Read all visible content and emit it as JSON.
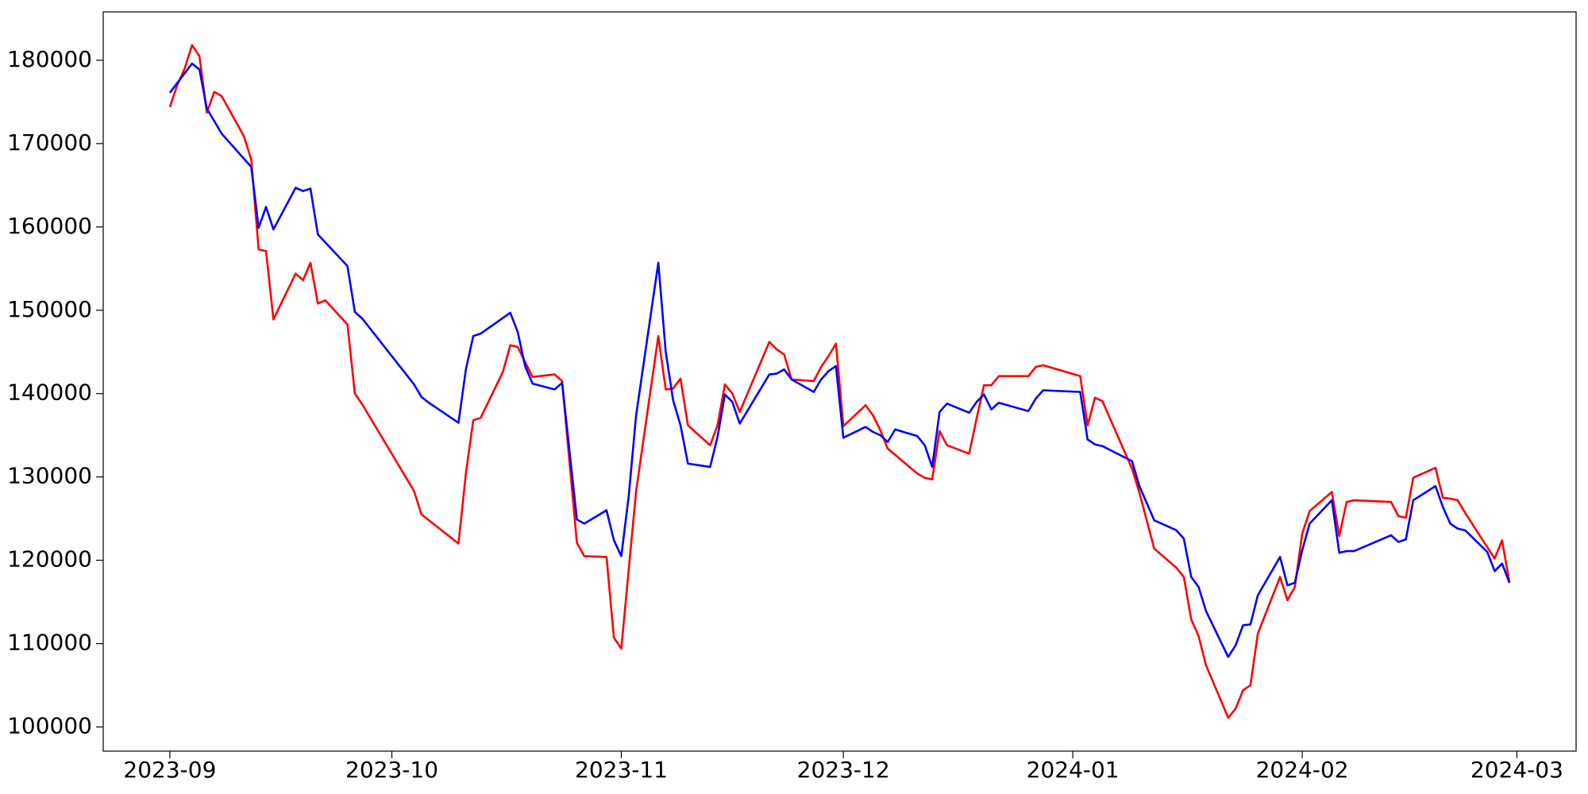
{
  "chart_data": {
    "type": "line",
    "xlim": [
      -9,
      190
    ],
    "xticks": [
      {
        "value": 0,
        "label": "2023-09"
      },
      {
        "value": 30,
        "label": "2023-10"
      },
      {
        "value": 61,
        "label": "2023-11"
      },
      {
        "value": 91,
        "label": "2023-12"
      },
      {
        "value": 122,
        "label": "2024-01"
      },
      {
        "value": 153,
        "label": "2024-02"
      },
      {
        "value": 182,
        "label": "2024-03"
      }
    ],
    "ylim": [
      97100,
      185800
    ],
    "yticks": [
      100000,
      110000,
      120000,
      130000,
      140000,
      150000,
      160000,
      170000,
      180000
    ],
    "grid": false,
    "series": [
      {
        "color": "#ff0000",
        "x": [
          0,
          1,
          2,
          3,
          4,
          5,
          6,
          7,
          10,
          11,
          12,
          13,
          14,
          17,
          18,
          19,
          20,
          21,
          24,
          25,
          26,
          33,
          34,
          39,
          40,
          41,
          42,
          45,
          46,
          47,
          49,
          52,
          53,
          55,
          56,
          59,
          60,
          61,
          63,
          66,
          67,
          68,
          69,
          70,
          73,
          74,
          75,
          76,
          77,
          81,
          82,
          83,
          84,
          87,
          88,
          89,
          90,
          91,
          94,
          95,
          96,
          97,
          101,
          102,
          103,
          104,
          105,
          108,
          109,
          110,
          111,
          112,
          116,
          117,
          118,
          123,
          124,
          125,
          126,
          130,
          131,
          133,
          136,
          137,
          138,
          139,
          140,
          143,
          144,
          145,
          146,
          147,
          150,
          151,
          152,
          153,
          154,
          157,
          158,
          159,
          160,
          165,
          166,
          167,
          168,
          171,
          172,
          173,
          174,
          175,
          179,
          180,
          181
        ],
        "values": [
          174400,
          177000,
          179000,
          181800,
          180500,
          173700,
          176200,
          175700,
          170900,
          168100,
          157300,
          157100,
          148900,
          154400,
          153600,
          155700,
          150800,
          151200,
          148300,
          140000,
          138700,
          128300,
          125500,
          122000,
          130400,
          136800,
          137100,
          142600,
          145800,
          145600,
          142000,
          142300,
          141500,
          122100,
          120500,
          120400,
          110700,
          109400,
          128300,
          146900,
          140500,
          140600,
          141800,
          136200,
          133800,
          136200,
          141100,
          140000,
          137800,
          146200,
          145300,
          144700,
          141700,
          141500,
          143200,
          144500,
          146000,
          136100,
          138600,
          137400,
          135600,
          133400,
          130400,
          129900,
          129700,
          135500,
          133800,
          132800,
          137000,
          141000,
          141000,
          142100,
          142100,
          143200,
          143400,
          142100,
          136200,
          139500,
          139100,
          131000,
          128100,
          121400,
          119100,
          118000,
          112900,
          110900,
          107400,
          101100,
          102200,
          104400,
          105000,
          111200,
          118000,
          115200,
          116800,
          123200,
          125900,
          128200,
          122900,
          127000,
          127200,
          127000,
          125300,
          125100,
          129900,
          131100,
          127500,
          127400,
          127200,
          125700,
          120200,
          122400,
          117300
        ]
      },
      {
        "color": "#0000ff",
        "x": [
          0,
          3,
          4,
          5,
          7,
          10,
          11,
          12,
          13,
          14,
          17,
          18,
          19,
          20,
          24,
          25,
          26,
          33,
          34,
          35,
          39,
          40,
          41,
          42,
          46,
          47,
          48,
          49,
          52,
          53,
          55,
          56,
          59,
          60,
          61,
          62,
          63,
          66,
          67,
          68,
          69,
          70,
          73,
          74,
          75,
          76,
          77,
          81,
          82,
          83,
          84,
          87,
          88,
          89,
          90,
          91,
          94,
          95,
          96,
          97,
          98,
          101,
          102,
          103,
          104,
          105,
          108,
          109,
          110,
          111,
          112,
          116,
          117,
          118,
          123,
          124,
          125,
          126,
          130,
          131,
          133,
          136,
          137,
          138,
          139,
          140,
          143,
          144,
          145,
          146,
          147,
          150,
          151,
          152,
          153,
          154,
          157,
          158,
          159,
          160,
          165,
          166,
          167,
          168,
          171,
          172,
          173,
          174,
          175,
          178,
          179,
          180,
          181
        ],
        "values": [
          176100,
          179600,
          178900,
          174200,
          171200,
          168200,
          167200,
          159900,
          162400,
          159700,
          164700,
          164300,
          164600,
          159100,
          155300,
          149800,
          149000,
          141100,
          139600,
          138900,
          136500,
          142900,
          146900,
          147200,
          149700,
          147400,
          143300,
          141200,
          140500,
          141300,
          124900,
          124400,
          126000,
          122400,
          120500,
          127700,
          137400,
          155700,
          145000,
          139200,
          136200,
          131600,
          131200,
          134800,
          139900,
          139000,
          136400,
          142300,
          142400,
          142900,
          141700,
          140200,
          141700,
          142700,
          143300,
          134700,
          136000,
          135400,
          135000,
          134200,
          135700,
          134900,
          133800,
          131200,
          137800,
          138800,
          137700,
          139000,
          139900,
          138100,
          138900,
          137900,
          139400,
          140400,
          140200,
          134500,
          133900,
          133700,
          131900,
          128900,
          124800,
          123600,
          122600,
          118000,
          116800,
          113900,
          108400,
          109800,
          112200,
          112300,
          115800,
          120400,
          117000,
          117300,
          121200,
          124400,
          127200,
          120900,
          121100,
          121100,
          123000,
          122200,
          122500,
          127200,
          128900,
          126400,
          124400,
          123800,
          123600,
          121000,
          118700,
          119600,
          117300
        ]
      }
    ]
  }
}
